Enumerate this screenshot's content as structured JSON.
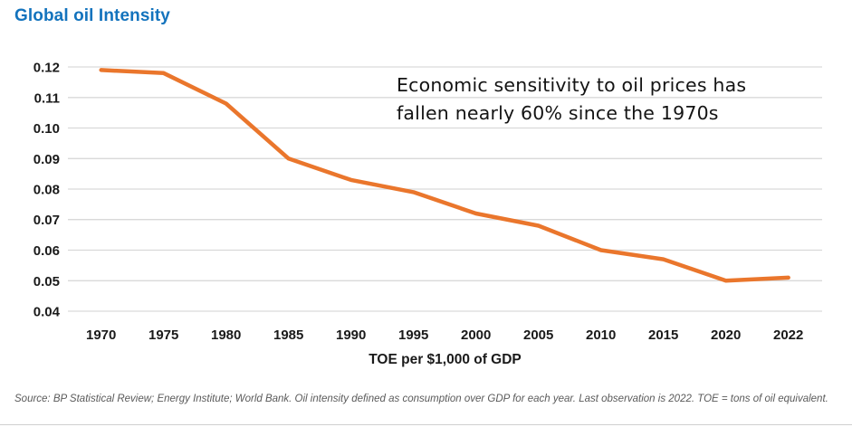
{
  "page": {
    "title": "Global oil Intensity"
  },
  "annotation": {
    "line1": "Economic sensitivity to oil prices has",
    "line2": "fallen nearly 60% since the 1970s"
  },
  "source_note": "Source: BP Statistical Review; Energy Institute; World Bank. Oil intensity defined as consumption over GDP for each year. Last observation is 2022. TOE = tons of oil equivalent.",
  "colors": {
    "title_blue": "#1373BD",
    "line_orange": "#EA762C",
    "gridline": "#d9d9d9",
    "tick_text": "#1a1a1a",
    "source_text": "#5a5a5a"
  },
  "chart_data": {
    "type": "line",
    "title": "Global oil Intensity",
    "categories": [
      "1970",
      "1975",
      "1980",
      "1985",
      "1990",
      "1995",
      "2000",
      "2005",
      "2010",
      "2015",
      "2020",
      "2022"
    ],
    "series": [
      {
        "name": "Global oil intensity",
        "values": [
          0.119,
          0.118,
          0.108,
          0.09,
          0.083,
          0.079,
          0.072,
          0.068,
          0.06,
          0.057,
          0.05,
          0.051
        ]
      }
    ],
    "xlabel": "TOE per $1,000 of GDP",
    "ylabel": "",
    "ylim": [
      0.04,
      0.12
    ],
    "ytick_labels": [
      "0.12",
      "0.11",
      "0.10",
      "0.09",
      "0.08",
      "0.07",
      "0.06",
      "0.05",
      "0.04"
    ],
    "grid": "horizontal",
    "legend": "none",
    "annotation": "Economic sensitivity to oil prices has fallen nearly 60% since the 1970s"
  }
}
